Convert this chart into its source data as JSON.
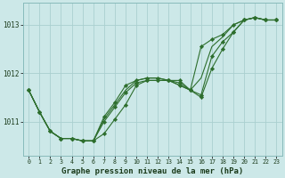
{
  "xlabel": "Graphe pression niveau de la mer (hPa)",
  "bg_color": "#cce8e8",
  "grid_color": "#aacfcf",
  "line_color": "#2d6e2d",
  "marker_color": "#2d6e2d",
  "ylim": [
    1010.3,
    1013.45
  ],
  "xlim": [
    -0.5,
    23.5
  ],
  "yticks": [
    1011,
    1012,
    1013
  ],
  "xticks": [
    0,
    1,
    2,
    3,
    4,
    5,
    6,
    7,
    8,
    9,
    10,
    11,
    12,
    13,
    14,
    15,
    16,
    17,
    18,
    19,
    20,
    21,
    22,
    23
  ],
  "lines": [
    {
      "y": [
        1011.65,
        1011.2,
        1010.8,
        1010.65,
        1010.65,
        1010.6,
        1010.6,
        1010.75,
        1011.05,
        1011.35,
        1011.75,
        1011.85,
        1011.85,
        1011.85,
        1011.85,
        1011.65,
        1011.5,
        1012.1,
        1012.5,
        1012.85,
        1013.1,
        1013.15,
        1013.1,
        1013.1
      ],
      "has_markers": true
    },
    {
      "y": [
        1011.65,
        1011.2,
        1010.8,
        1010.65,
        1010.65,
        1010.6,
        1010.6,
        1011.0,
        1011.3,
        1011.6,
        1011.8,
        1011.85,
        1011.85,
        1011.85,
        1011.8,
        1011.65,
        1011.55,
        1012.35,
        1012.65,
        1012.85,
        1013.1,
        1013.15,
        1013.1,
        1013.1
      ],
      "has_markers": true
    },
    {
      "y": [
        1011.65,
        1011.2,
        1010.8,
        1010.65,
        1010.65,
        1010.6,
        1010.6,
        1011.1,
        1011.4,
        1011.75,
        1011.85,
        1011.9,
        1011.9,
        1011.85,
        1011.75,
        1011.65,
        1012.55,
        1012.7,
        1012.8,
        1013.0,
        1013.1,
        1013.15,
        1013.1,
        1013.1
      ],
      "has_markers": true
    },
    {
      "y": [
        1011.65,
        1011.2,
        1010.8,
        1010.65,
        1010.65,
        1010.6,
        1010.6,
        1011.05,
        1011.35,
        1011.65,
        1011.85,
        1011.9,
        1011.9,
        1011.85,
        1011.75,
        1011.65,
        1011.9,
        1012.55,
        1012.75,
        1013.0,
        1013.1,
        1013.15,
        1013.1,
        1013.1
      ],
      "has_markers": false
    }
  ]
}
